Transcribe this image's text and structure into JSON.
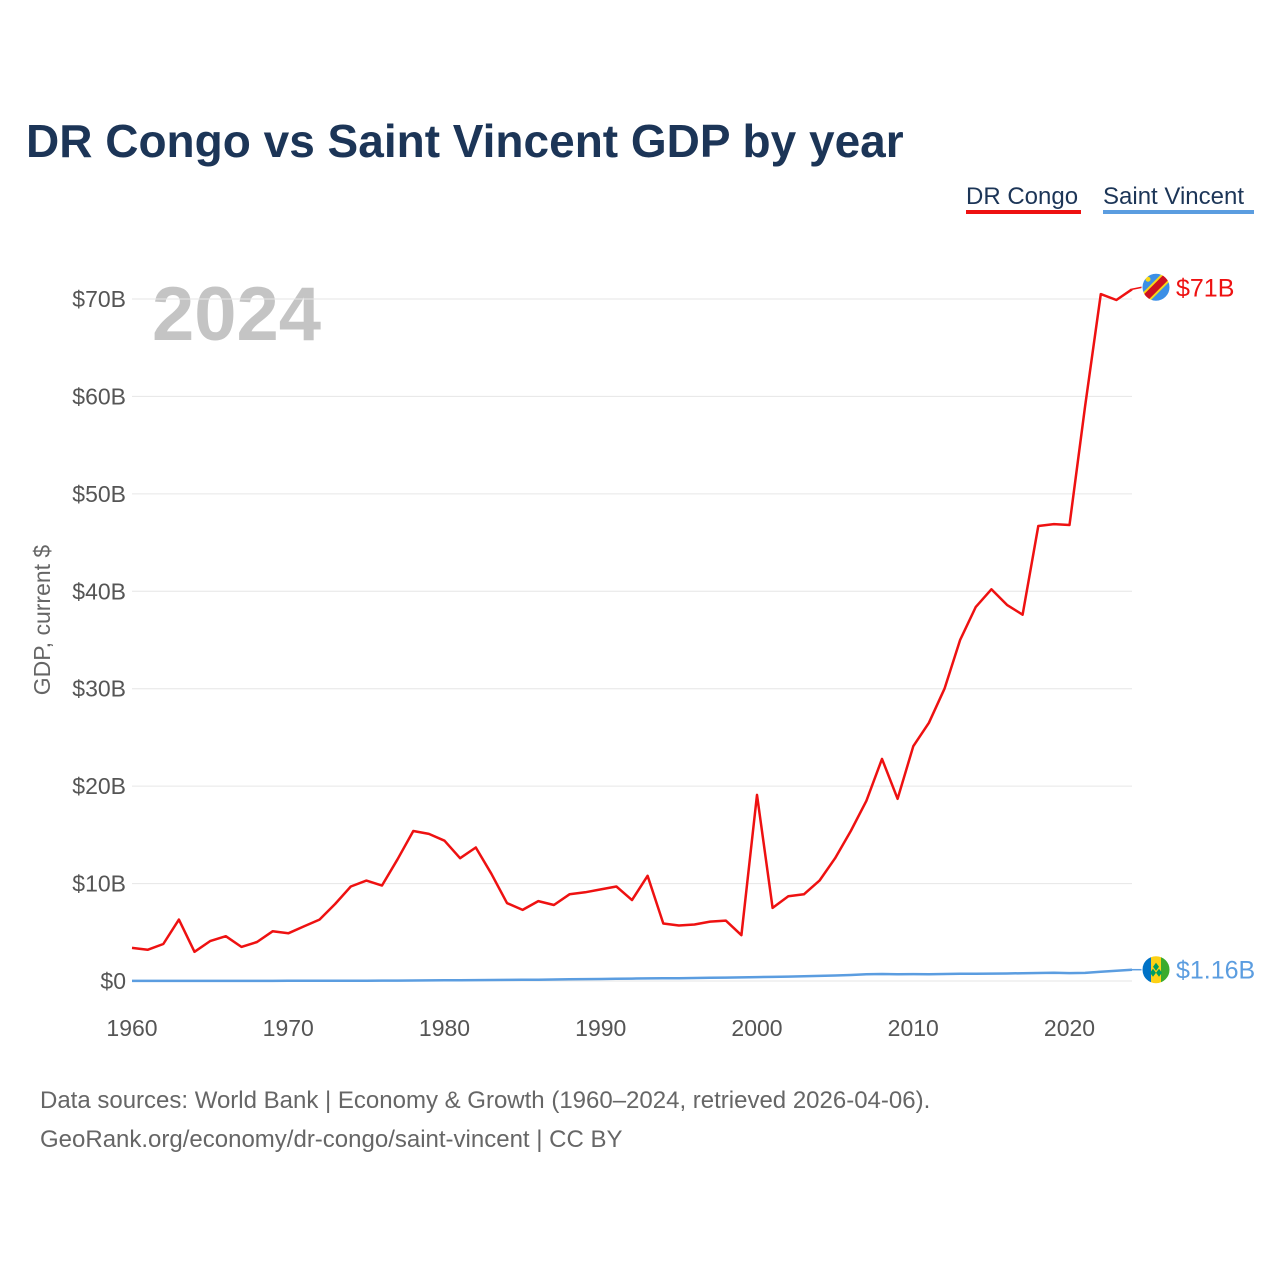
{
  "chart_data": {
    "type": "line",
    "title": "DR Congo vs Saint Vincent GDP by year",
    "ylabel": "GDP, current $",
    "xlabel": "",
    "year_mark": "2024",
    "ylim": [
      0,
      72
    ],
    "xlim": [
      1960,
      2024
    ],
    "y_ticks": [
      0,
      10,
      20,
      30,
      40,
      50,
      60,
      70
    ],
    "y_tick_labels": [
      "$0",
      "$10B",
      "$20B",
      "$30B",
      "$40B",
      "$50B",
      "$60B",
      "$70B"
    ],
    "x_ticks": [
      1960,
      1970,
      1980,
      1990,
      2000,
      2010,
      2020
    ],
    "x_tick_labels": [
      "1960",
      "1970",
      "1980",
      "1990",
      "2000",
      "2010",
      "2020"
    ],
    "grid": true,
    "legend_position": "top-right",
    "x": [
      1960,
      1961,
      1962,
      1963,
      1964,
      1965,
      1966,
      1967,
      1968,
      1969,
      1970,
      1971,
      1972,
      1973,
      1974,
      1975,
      1976,
      1977,
      1978,
      1979,
      1980,
      1981,
      1982,
      1983,
      1984,
      1985,
      1986,
      1987,
      1988,
      1989,
      1990,
      1991,
      1992,
      1993,
      1994,
      1995,
      1996,
      1997,
      1998,
      1999,
      2000,
      2001,
      2002,
      2003,
      2004,
      2005,
      2006,
      2007,
      2008,
      2009,
      2010,
      2011,
      2012,
      2013,
      2014,
      2015,
      2016,
      2017,
      2018,
      2019,
      2020,
      2021,
      2022,
      2023,
      2024
    ],
    "series": [
      {
        "name": "DR Congo",
        "color": "#ee1111",
        "end_label": "$71B",
        "flag": "dr-congo-flag-icon",
        "values": [
          3.4,
          3.2,
          3.8,
          6.3,
          3.0,
          4.1,
          4.6,
          3.5,
          4.0,
          5.1,
          4.9,
          5.6,
          6.3,
          7.9,
          9.7,
          10.3,
          9.8,
          12.5,
          15.4,
          15.1,
          14.4,
          12.6,
          13.7,
          11.0,
          8.0,
          7.3,
          8.2,
          7.8,
          8.9,
          9.1,
          9.4,
          9.7,
          8.3,
          10.8,
          5.9,
          5.7,
          5.8,
          6.1,
          6.2,
          4.7,
          19.1,
          7.5,
          8.7,
          8.9,
          10.3,
          12.6,
          15.4,
          18.5,
          22.8,
          18.7,
          24.1,
          26.5,
          30.0,
          35.0,
          38.4,
          40.2,
          38.6,
          37.6,
          46.7,
          46.9,
          46.8,
          59.0,
          70.5,
          69.9,
          71.0
        ]
      },
      {
        "name": "Saint Vincent",
        "color": "#5b9de0",
        "end_label": "$1.16B",
        "flag": "saint-vincent-flag-icon",
        "values": [
          0.01,
          0.01,
          0.01,
          0.01,
          0.01,
          0.01,
          0.01,
          0.01,
          0.01,
          0.01,
          0.02,
          0.02,
          0.02,
          0.03,
          0.03,
          0.03,
          0.04,
          0.04,
          0.05,
          0.06,
          0.07,
          0.08,
          0.09,
          0.1,
          0.11,
          0.12,
          0.13,
          0.15,
          0.17,
          0.19,
          0.21,
          0.23,
          0.25,
          0.27,
          0.28,
          0.29,
          0.31,
          0.33,
          0.35,
          0.37,
          0.4,
          0.42,
          0.45,
          0.48,
          0.52,
          0.56,
          0.62,
          0.7,
          0.72,
          0.7,
          0.71,
          0.7,
          0.72,
          0.74,
          0.75,
          0.76,
          0.77,
          0.8,
          0.82,
          0.84,
          0.81,
          0.83,
          0.95,
          1.05,
          1.16
        ]
      }
    ]
  },
  "source": {
    "line1": "Data sources: World Bank | Economy & Growth (1960–2024, retrieved 2026-04-06).",
    "line2": "GeoRank.org/economy/dr-congo/saint-vincent | CC BY"
  }
}
